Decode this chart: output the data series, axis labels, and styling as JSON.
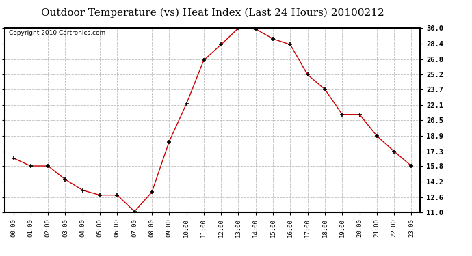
{
  "title": "Outdoor Temperature (vs) Heat Index (Last 24 Hours) 20100212",
  "copyright": "Copyright 2010 Cartronics.com",
  "x_labels": [
    "00:00",
    "01:00",
    "02:00",
    "03:00",
    "04:00",
    "05:00",
    "06:00",
    "07:00",
    "08:00",
    "09:00",
    "10:00",
    "11:00",
    "12:00",
    "13:00",
    "14:00",
    "15:00",
    "16:00",
    "17:00",
    "18:00",
    "19:00",
    "20:00",
    "21:00",
    "22:00",
    "23:00"
  ],
  "y_values": [
    16.6,
    15.8,
    15.8,
    14.4,
    13.3,
    12.8,
    12.8,
    11.1,
    13.1,
    18.3,
    22.2,
    26.7,
    28.3,
    30.0,
    29.9,
    28.9,
    28.3,
    25.2,
    23.7,
    21.1,
    21.1,
    18.9,
    17.3,
    15.8
  ],
  "line_color": "#cc0000",
  "marker": "+",
  "marker_size": 5,
  "marker_color": "#000000",
  "y_min": 11.0,
  "y_max": 30.0,
  "y_ticks": [
    11.0,
    12.6,
    14.2,
    15.8,
    17.3,
    18.9,
    20.5,
    22.1,
    23.7,
    25.2,
    26.8,
    28.4,
    30.0
  ],
  "grid_color": "#bbbbbb",
  "grid_style": "--",
  "background_color": "#ffffff",
  "title_fontsize": 11,
  "copyright_fontsize": 6.5
}
